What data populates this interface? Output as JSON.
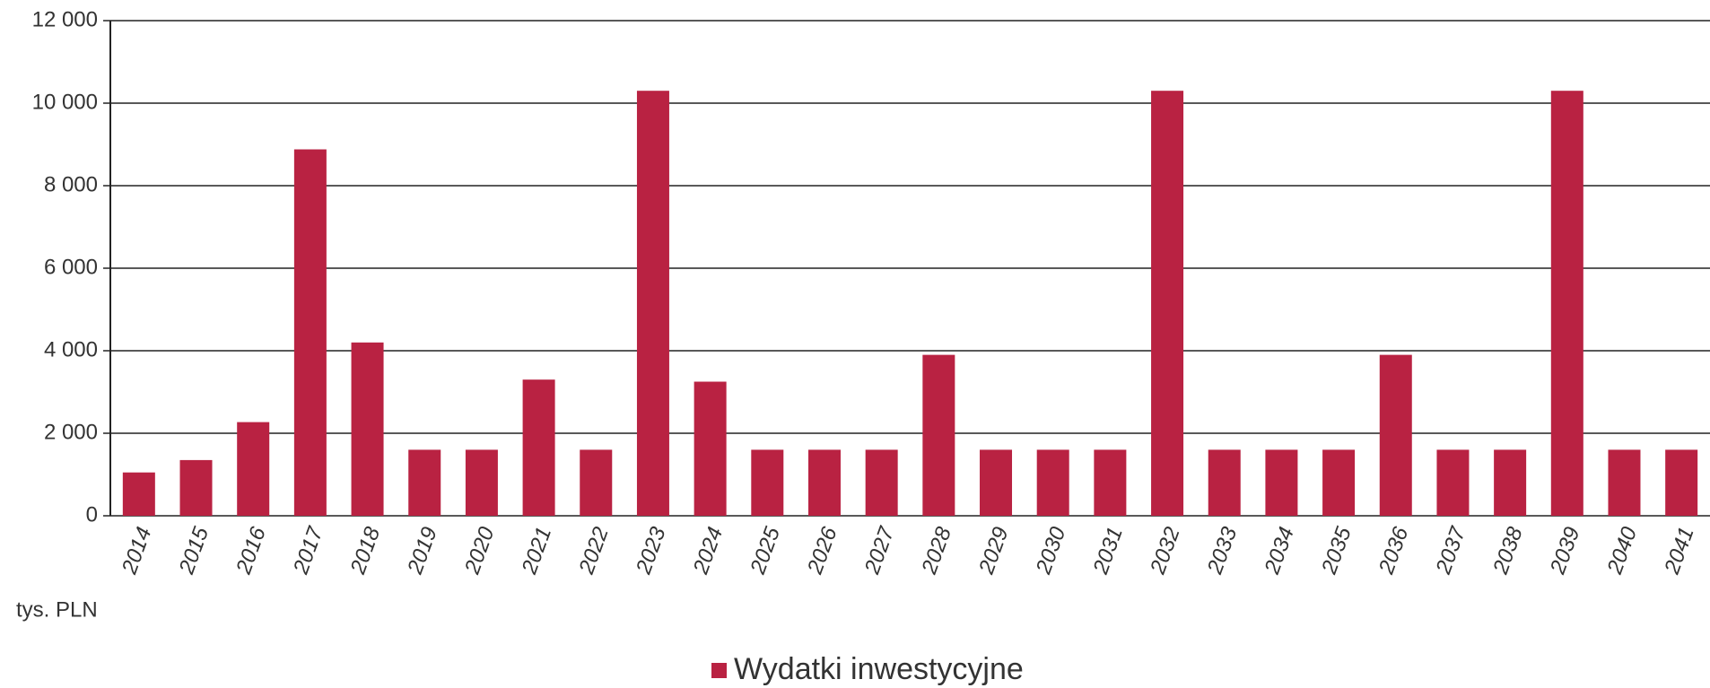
{
  "chart_data": {
    "type": "bar",
    "y_label": "tys. PLN",
    "categories": [
      "2014",
      "2015",
      "2016",
      "2017",
      "2018",
      "2019",
      "2020",
      "2021",
      "2022",
      "2023",
      "2024",
      "2025",
      "2026",
      "2027",
      "2028",
      "2029",
      "2030",
      "2031",
      "2032",
      "2033",
      "2034",
      "2035",
      "2036",
      "2037",
      "2038",
      "2039",
      "2040",
      "2041"
    ],
    "series": [
      {
        "name": "Wydatki inwestycyjne",
        "color": "#b92242",
        "values": [
          1050,
          1350,
          2270,
          8880,
          4200,
          1600,
          1600,
          3300,
          1600,
          10300,
          3250,
          1600,
          1600,
          1600,
          3900,
          1600,
          1600,
          1600,
          10300,
          1600,
          1600,
          1600,
          3900,
          1600,
          1600,
          10300,
          1600,
          1600
        ]
      }
    ],
    "ylim": [
      0,
      12000
    ],
    "yticks": [
      0,
      {
        "value": 2000,
        "label": "2 000"
      },
      {
        "value": 4000,
        "label": "4 000"
      },
      {
        "value": 6000,
        "label": "6 000"
      },
      {
        "value": 8000,
        "label": "8 000"
      },
      {
        "value": 10000,
        "label": "10 000"
      },
      {
        "value": 12000,
        "label": "12 000"
      }
    ],
    "grid": true,
    "legend": "bottom"
  }
}
